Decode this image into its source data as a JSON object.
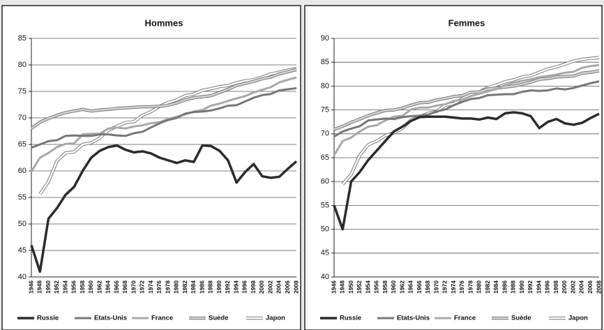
{
  "chart_data": [
    {
      "type": "line",
      "title": "Hommes",
      "categories": [
        "1946",
        "1948",
        "1950",
        "1952",
        "1954",
        "1956",
        "1958",
        "1960",
        "1962",
        "1964",
        "1966",
        "1968",
        "1970",
        "1972",
        "1974",
        "1976",
        "1978",
        "1980",
        "1982",
        "1984",
        "1986",
        "1988",
        "1990",
        "1992",
        "1994",
        "1996",
        "1998",
        "2000",
        "2002",
        "2004",
        "2006",
        "2008"
      ],
      "ylim": [
        40,
        85
      ],
      "yticks": [
        40,
        45,
        50,
        55,
        60,
        65,
        70,
        75,
        80,
        85
      ],
      "grid": true,
      "legend": "bottom",
      "series": [
        {
          "name": "Russie",
          "color": "#2b2b2b",
          "values": [
            46,
            41,
            51,
            53,
            55.5,
            57,
            60,
            62.5,
            63.8,
            64.5,
            64.8,
            64,
            63.5,
            63.7,
            63.3,
            62.5,
            62,
            61.5,
            62,
            61.7,
            64.8,
            64.7,
            63.8,
            62,
            57.8,
            59.8,
            61.3,
            59,
            58.7,
            58.9,
            60.4,
            61.8
          ]
        },
        {
          "name": "Etats-Unis",
          "color": "#777777",
          "values": [
            64.4,
            65,
            65.6,
            65.8,
            66.6,
            66.7,
            66.6,
            66.6,
            66.9,
            66.9,
            66.7,
            66.6,
            67.1,
            67.4,
            68.2,
            69,
            69.6,
            70,
            70.8,
            71.1,
            71.2,
            71.4,
            71.8,
            72.3,
            72.4,
            73.1,
            73.8,
            74.3,
            74.5,
            75.2,
            75.4,
            75.6
          ]
        },
        {
          "name": "France",
          "color": "#a8a8a8",
          "values": [
            59.9,
            62.5,
            63.4,
            64.5,
            65.1,
            65.2,
            66.9,
            67,
            67,
            68,
            68.2,
            68,
            68.4,
            68.6,
            69,
            69.2,
            69.8,
            70.2,
            70.7,
            71.2,
            71.5,
            72.3,
            72.7,
            73.2,
            73.7,
            74.1,
            74.8,
            75.3,
            75.8,
            76.7,
            77.2,
            77.6
          ]
        },
        {
          "name": "Suède",
          "color": "#d2d2d2",
          "values": [
            68,
            69.2,
            69.9,
            70.5,
            71,
            71.3,
            71.6,
            71.3,
            71.5,
            71.6,
            71.8,
            71.9,
            72,
            72.1,
            72.1,
            72.2,
            72.4,
            72.8,
            73.4,
            73.8,
            74,
            74.2,
            74.8,
            75.4,
            76.1,
            76.5,
            76.9,
            77.4,
            77.7,
            78.3,
            78.7,
            79.1
          ]
        },
        {
          "name": "Japon",
          "color": "#ffffff",
          "values": [
            null,
            55.6,
            58,
            61.9,
            63.4,
            63.6,
            65,
            65.3,
            66.2,
            67.7,
            68.4,
            69.1,
            69.3,
            70.5,
            71.2,
            72.2,
            72.9,
            73.4,
            74.2,
            74.5,
            75.2,
            75.5,
            75.9,
            76.1,
            76.6,
            77,
            77.2,
            77.7,
            78.3,
            78.6,
            79,
            79.3
          ]
        }
      ]
    },
    {
      "type": "line",
      "title": "Femmes",
      "categories": [
        "1946",
        "1948",
        "1950",
        "1952",
        "1954",
        "1956",
        "1958",
        "1960",
        "1962",
        "1964",
        "1966",
        "1968",
        "1970",
        "1972",
        "1974",
        "1976",
        "1978",
        "1980",
        "1982",
        "1984",
        "1986",
        "1988",
        "1990",
        "1992",
        "1994",
        "1996",
        "1998",
        "2000",
        "2002",
        "2004",
        "2006",
        "2008"
      ],
      "ylim": [
        40,
        90
      ],
      "yticks": [
        40,
        45,
        50,
        55,
        60,
        65,
        70,
        75,
        80,
        85,
        90
      ],
      "grid": true,
      "legend": "bottom",
      "series": [
        {
          "name": "Russie",
          "color": "#2b2b2b",
          "values": [
            55,
            50,
            60,
            62,
            64.5,
            66.5,
            68.5,
            70.5,
            71.5,
            72.7,
            73.5,
            73.6,
            73.6,
            73.6,
            73.4,
            73.2,
            73.2,
            73,
            73.4,
            73.1,
            74.3,
            74.5,
            74.3,
            73.7,
            71.2,
            72.5,
            73.1,
            72.2,
            71.9,
            72.3,
            73.3,
            74.2
          ]
        },
        {
          "name": "Etats-Unis",
          "color": "#777777",
          "values": [
            69.4,
            70.5,
            71.1,
            71.6,
            72.8,
            73,
            73.2,
            73.1,
            73.5,
            73.7,
            73.8,
            74,
            74.7,
            75.1,
            76,
            76.7,
            77.3,
            77.5,
            78.1,
            78.2,
            78.3,
            78.3,
            78.8,
            79.1,
            79,
            79.1,
            79.5,
            79.3,
            79.6,
            80.1,
            80.6,
            81
          ]
        },
        {
          "name": "France",
          "color": "#a8a8a8",
          "values": [
            65.5,
            68.5,
            69.2,
            70.5,
            71.5,
            71.8,
            72.8,
            73.6,
            73.8,
            75.1,
            75.5,
            75.5,
            75.9,
            76.2,
            76.9,
            77.2,
            77.9,
            78.4,
            78.9,
            79.4,
            80.2,
            80.7,
            81.1,
            81.4,
            81.9,
            82.1,
            82.4,
            82.8,
            83,
            83.8,
            84.2,
            84.4
          ]
        },
        {
          "name": "Suède",
          "color": "#d2d2d2",
          "values": [
            70.9,
            71.6,
            72.4,
            73.1,
            73.8,
            74.4,
            74.9,
            75,
            75.4,
            76,
            76.5,
            76.6,
            77.1,
            77.4,
            77.8,
            78,
            78.7,
            78.8,
            79.4,
            79.6,
            79.8,
            80,
            80.4,
            80.8,
            81.4,
            81.6,
            81.9,
            82,
            82.1,
            82.7,
            82.9,
            83.2
          ]
        },
        {
          "name": "Japon",
          "color": "#ffffff",
          "values": [
            null,
            59.4,
            61.5,
            65.5,
            67.7,
            68.5,
            69.6,
            70.2,
            71.2,
            72.9,
            73.6,
            74.3,
            74.7,
            76,
            76.3,
            77.4,
            78.3,
            78.8,
            79.7,
            80.2,
            80.9,
            81.3,
            81.9,
            82.2,
            82.9,
            83.6,
            84,
            84.6,
            85.2,
            85.6,
            85.8,
            86
          ]
        }
      ]
    }
  ]
}
